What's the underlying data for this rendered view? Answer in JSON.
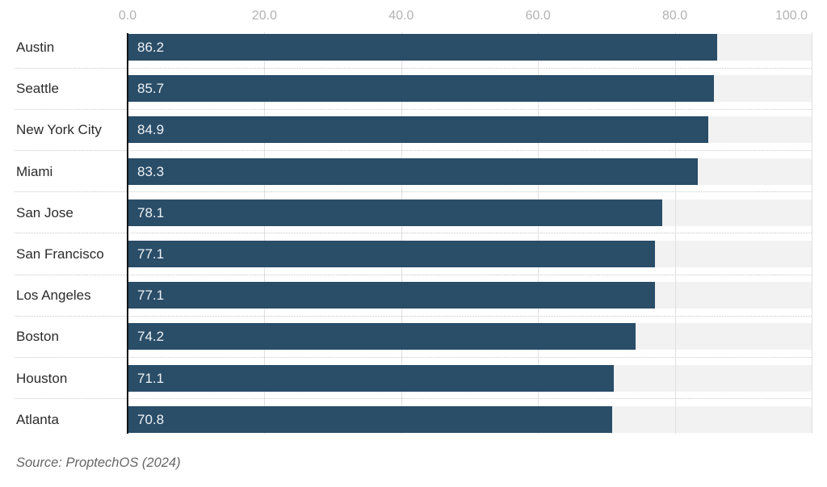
{
  "chart_data": {
    "type": "bar",
    "orientation": "horizontal",
    "title": "",
    "xlabel": "",
    "ylabel": "",
    "categories": [
      "Austin",
      "Seattle",
      "New York City",
      "Miami",
      "San Jose",
      "San Francisco",
      "Los Angeles",
      "Boston",
      "Houston",
      "Atlanta"
    ],
    "values": [
      86.2,
      85.7,
      84.9,
      83.3,
      78.1,
      77.1,
      77.1,
      74.2,
      71.1,
      70.8
    ],
    "value_labels": [
      "86.2",
      "85.7",
      "84.9",
      "83.3",
      "78.1",
      "77.1",
      "77.1",
      "74.2",
      "71.1",
      "70.8"
    ],
    "xlim": [
      0,
      100
    ],
    "x_ticks": [
      0,
      20,
      40,
      60,
      80,
      100
    ],
    "x_tick_labels": [
      "0.0",
      "20.0",
      "40.0",
      "60.0",
      "80.0",
      "100.0"
    ],
    "grid": true,
    "legend": "none",
    "bar_color": "#2a4d68",
    "track_color": "#f2f2f2",
    "gridline_color": "#e0e0e0",
    "separator_color": "#c9c9c9",
    "axis_line_color": "#151515",
    "tick_label_color": "#b2b2b2",
    "category_label_color": "#2b2b2b",
    "value_label_color": "#eef2f4"
  },
  "source": {
    "text": "Source: ProptechOS (2024)",
    "color": "#666666"
  }
}
